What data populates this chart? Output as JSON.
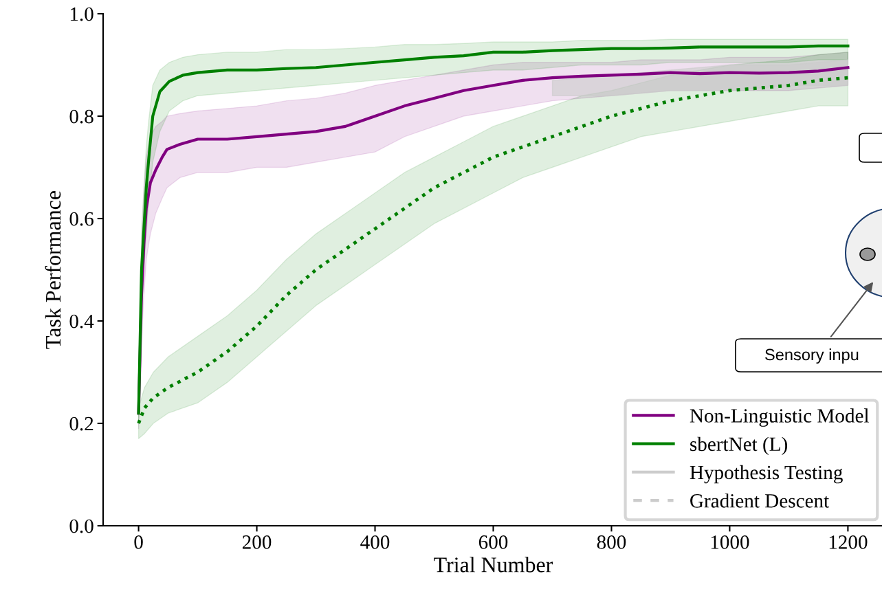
{
  "chart_data": {
    "type": "line",
    "xlabel": "Trial Number",
    "ylabel": "Task Performance",
    "xlim": [
      -60,
      1260
    ],
    "xticks": [
      0,
      200,
      400,
      600,
      800,
      1000,
      1200
    ],
    "ylim": [
      0,
      1.0
    ],
    "yticks": [
      {
        "value": 0,
        "label": "0.0"
      },
      0.2,
      0.4,
      0.6,
      0.8,
      {
        "value": 1.0,
        "label": "1.0"
      }
    ],
    "legend": "bottom right",
    "grid": false,
    "series": [
      {
        "name": "Non-Linguistic Model",
        "color": "#800080",
        "line_style": "solid",
        "x": [
          0,
          5,
          9,
          13,
          20,
          29,
          40,
          48,
          70,
          100,
          150,
          200,
          250,
          300,
          350,
          400,
          450,
          500,
          550,
          600,
          650,
          700,
          750,
          800,
          850,
          900,
          950,
          1000,
          1050,
          1100,
          1150,
          1200
        ],
        "values": [
          0.22,
          0.45,
          0.55,
          0.62,
          0.67,
          0.695,
          0.72,
          0.735,
          0.745,
          0.755,
          0.755,
          0.76,
          0.765,
          0.77,
          0.78,
          0.8,
          0.82,
          0.835,
          0.85,
          0.86,
          0.87,
          0.875,
          0.878,
          0.88,
          0.882,
          0.885,
          0.883,
          0.885,
          0.884,
          0.885,
          0.888,
          0.895
        ],
        "lower": [
          0.19,
          0.36,
          0.45,
          0.52,
          0.57,
          0.61,
          0.64,
          0.66,
          0.68,
          0.69,
          0.69,
          0.7,
          0.7,
          0.71,
          0.72,
          0.73,
          0.76,
          0.78,
          0.8,
          0.81,
          0.82,
          0.83,
          0.835,
          0.84,
          0.845,
          0.85,
          0.85,
          0.85,
          0.85,
          0.85,
          0.855,
          0.86
        ],
        "upper": [
          0.25,
          0.54,
          0.65,
          0.72,
          0.76,
          0.78,
          0.79,
          0.8,
          0.805,
          0.81,
          0.815,
          0.82,
          0.83,
          0.835,
          0.845,
          0.86,
          0.87,
          0.88,
          0.89,
          0.9,
          0.905,
          0.905,
          0.905,
          0.905,
          0.91,
          0.91,
          0.91,
          0.915,
          0.915,
          0.915,
          0.92,
          0.925
        ]
      },
      {
        "name": "sbertNet (L)",
        "color": "#008000",
        "line_style": "solid",
        "x": [
          0,
          5,
          9,
          13,
          17,
          24,
          36,
          52,
          75,
          100,
          150,
          200,
          250,
          300,
          350,
          400,
          450,
          500,
          550,
          600,
          650,
          700,
          750,
          800,
          850,
          900,
          950,
          1000,
          1050,
          1100,
          1150,
          1200
        ],
        "values": [
          0.22,
          0.5,
          0.58,
          0.66,
          0.714,
          0.8,
          0.848,
          0.868,
          0.88,
          0.885,
          0.89,
          0.89,
          0.893,
          0.895,
          0.9,
          0.905,
          0.91,
          0.915,
          0.918,
          0.925,
          0.925,
          0.928,
          0.93,
          0.932,
          0.932,
          0.933,
          0.935,
          0.935,
          0.935,
          0.935,
          0.937,
          0.937
        ],
        "lower": [
          0.2,
          0.42,
          0.5,
          0.57,
          0.63,
          0.71,
          0.77,
          0.81,
          0.83,
          0.84,
          0.845,
          0.85,
          0.855,
          0.86,
          0.865,
          0.87,
          0.875,
          0.88,
          0.885,
          0.89,
          0.89,
          0.895,
          0.9,
          0.9,
          0.9,
          0.905,
          0.905,
          0.905,
          0.905,
          0.905,
          0.91,
          0.91
        ],
        "upper": [
          0.24,
          0.58,
          0.66,
          0.74,
          0.79,
          0.86,
          0.89,
          0.905,
          0.915,
          0.92,
          0.925,
          0.925,
          0.93,
          0.93,
          0.932,
          0.935,
          0.94,
          0.94,
          0.942,
          0.945,
          0.945,
          0.945,
          0.948,
          0.948,
          0.948,
          0.95,
          0.95,
          0.95,
          0.95,
          0.95,
          0.95,
          0.95
        ]
      },
      {
        "color": "#007f00",
        "line_style": "dotted",
        "x": [
          0,
          10,
          25,
          50,
          100,
          150,
          200,
          250,
          300,
          350,
          400,
          450,
          500,
          550,
          600,
          650,
          700,
          750,
          800,
          850,
          900,
          950,
          1000,
          1050,
          1100,
          1150,
          1200
        ],
        "values": [
          0.2,
          0.23,
          0.25,
          0.27,
          0.3,
          0.34,
          0.39,
          0.45,
          0.5,
          0.54,
          0.58,
          0.62,
          0.66,
          0.69,
          0.72,
          0.74,
          0.76,
          0.78,
          0.8,
          0.815,
          0.83,
          0.84,
          0.85,
          0.855,
          0.86,
          0.87,
          0.875
        ],
        "lower": [
          0.17,
          0.18,
          0.2,
          0.22,
          0.24,
          0.28,
          0.33,
          0.38,
          0.43,
          0.47,
          0.51,
          0.55,
          0.59,
          0.62,
          0.65,
          0.68,
          0.7,
          0.72,
          0.74,
          0.76,
          0.77,
          0.78,
          0.79,
          0.8,
          0.81,
          0.82,
          0.82
        ],
        "upper": [
          0.23,
          0.27,
          0.3,
          0.33,
          0.37,
          0.41,
          0.46,
          0.52,
          0.57,
          0.61,
          0.65,
          0.69,
          0.72,
          0.75,
          0.78,
          0.8,
          0.82,
          0.84,
          0.85,
          0.865,
          0.88,
          0.89,
          0.9,
          0.905,
          0.91,
          0.92,
          0.925
        ]
      },
      {
        "name": "Hypothesis Testing",
        "color": "#cccccc",
        "line_style": "solid",
        "x": [
          700,
          800,
          900,
          1000,
          1100,
          1200
        ],
        "values": [
          null,
          null,
          null,
          null,
          null,
          null
        ],
        "lower": [
          0.84,
          0.84,
          0.85,
          0.85,
          0.86,
          0.86
        ],
        "upper": [
          0.87,
          0.88,
          0.89,
          0.9,
          0.9,
          0.91
        ]
      },
      {
        "name": "Gradient Descent",
        "color": "#cccccc",
        "line_style": "dashed"
      }
    ],
    "annotations": [
      "Sensory inpu"
    ]
  }
}
